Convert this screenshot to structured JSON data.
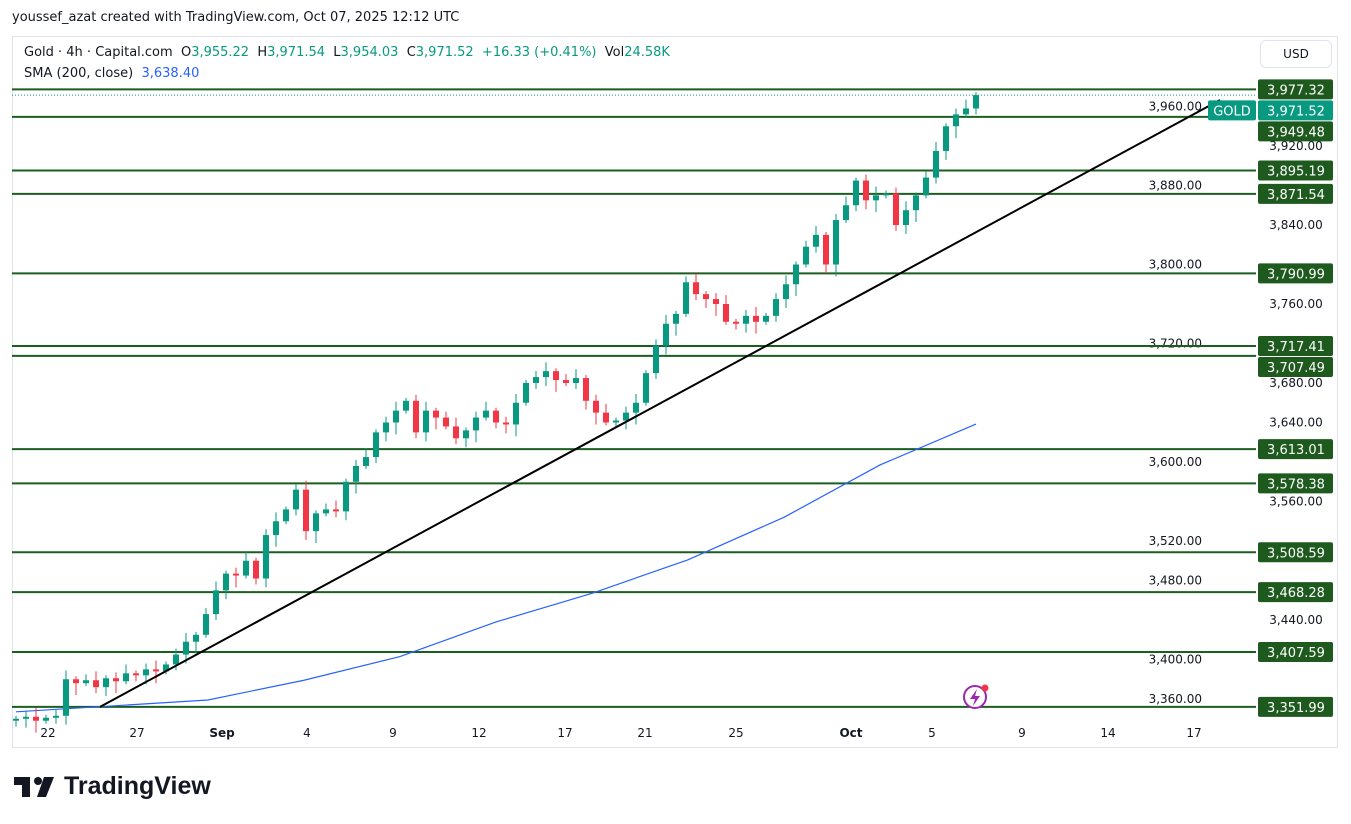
{
  "header": {
    "attribution": "youssef_azat created with TradingView.com, Oct 07, 2025 12:12 UTC"
  },
  "legend": {
    "symbol": "Gold · 4h · Capital.com",
    "o_label": "O",
    "open": "3,955.22",
    "h_label": "H",
    "high": "3,971.54",
    "l_label": "L",
    "low": "3,954.03",
    "c_label": "C",
    "close": "3,971.52",
    "change": "+16.33 (+0.41%)",
    "vol_label": "Vol",
    "volume": "24.58K",
    "sma_label": "SMA (200, close)",
    "sma_value": "3,638.40"
  },
  "currency_button": "USD",
  "brand": "TradingView",
  "colors": {
    "up": "#089981",
    "down": "#f23645",
    "sma": "#2962ff",
    "level": "#1b5e20",
    "trendline": "#000000",
    "price_tag": "#089981"
  },
  "icons": [
    "lightning-icon",
    "tradingview-logo-icon"
  ],
  "chart_data": {
    "type": "candlestick",
    "symbol_tag": "GOLD",
    "last_price": 3971.52,
    "last_price_label": "3,971.52",
    "closes": [
      3340,
      3342,
      3338,
      3341,
      3343,
      3380,
      3376,
      3379,
      3372,
      3381,
      3378,
      3386,
      3384,
      3390,
      3388,
      3395,
      3405,
      3418,
      3425,
      3446,
      3470,
      3487,
      3485,
      3500,
      3482,
      3526,
      3540,
      3552,
      3572,
      3530,
      3548,
      3552,
      3550,
      3580,
      3596,
      3605,
      3630,
      3640,
      3652,
      3662,
      3630,
      3652,
      3645,
      3636,
      3624,
      3632,
      3645,
      3652,
      3640,
      3638,
      3660,
      3680,
      3686,
      3692,
      3683,
      3680,
      3685,
      3662,
      3650,
      3640,
      3642,
      3650,
      3660,
      3690,
      3718,
      3740,
      3750,
      3782,
      3770,
      3765,
      3760,
      3742,
      3740,
      3748,
      3742,
      3748,
      3765,
      3780,
      3800,
      3818,
      3830,
      3800,
      3845,
      3860,
      3885,
      3865,
      3870,
      3872,
      3840,
      3855,
      3870,
      3888,
      3915,
      3940,
      3952,
      3958,
      3971.52
    ],
    "sma_200": [
      3347,
      3353,
      3359,
      3379,
      3403,
      3438,
      3467,
      3501,
      3544,
      3597,
      3638.4
    ],
    "trendline": {
      "start": 3352,
      "end": 3966.6
    },
    "levels": [
      {
        "value": 3977.32,
        "label": "3,977.32"
      },
      {
        "value": 3949.48,
        "label": "3,949.48"
      },
      {
        "value": 3895.19,
        "label": "3,895.19"
      },
      {
        "value": 3871.54,
        "label": "3,871.54"
      },
      {
        "value": 3790.99,
        "label": "3,790.99"
      },
      {
        "value": 3717.41,
        "label": "3,717.41"
      },
      {
        "value": 3707.49,
        "label": "3,707.49"
      },
      {
        "value": 3613.01,
        "label": "3,613.01"
      },
      {
        "value": 3578.38,
        "label": "3,578.38"
      },
      {
        "value": 3508.59,
        "label": "3,508.59"
      },
      {
        "value": 3468.28,
        "label": "3,468.28"
      },
      {
        "value": 3407.59,
        "label": "3,407.59"
      },
      {
        "value": 3351.99,
        "label": "3,351.99"
      }
    ],
    "y_ticks": [
      3360,
      3400,
      3440,
      3480,
      3520,
      3560,
      3600,
      3640,
      3680,
      3720,
      3760,
      3800,
      3840,
      3880,
      3920,
      3960
    ],
    "y_tick_labels": [
      "3,360.00",
      "3,400.00",
      "3,440.00",
      "3,480.00",
      "3,520.00",
      "3,560.00",
      "3,600.00",
      "3,640.00",
      "3,680.00",
      "3,720.00",
      "3,760.00",
      "3,800.00",
      "3,840.00",
      "3,880.00",
      "3,920.00",
      "3,960.00"
    ],
    "x_tick_labels": [
      "22",
      "27",
      "Sep",
      "4",
      "9",
      "12",
      "17",
      "21",
      "25",
      "Oct",
      "5",
      "9",
      "14",
      "17"
    ]
  }
}
